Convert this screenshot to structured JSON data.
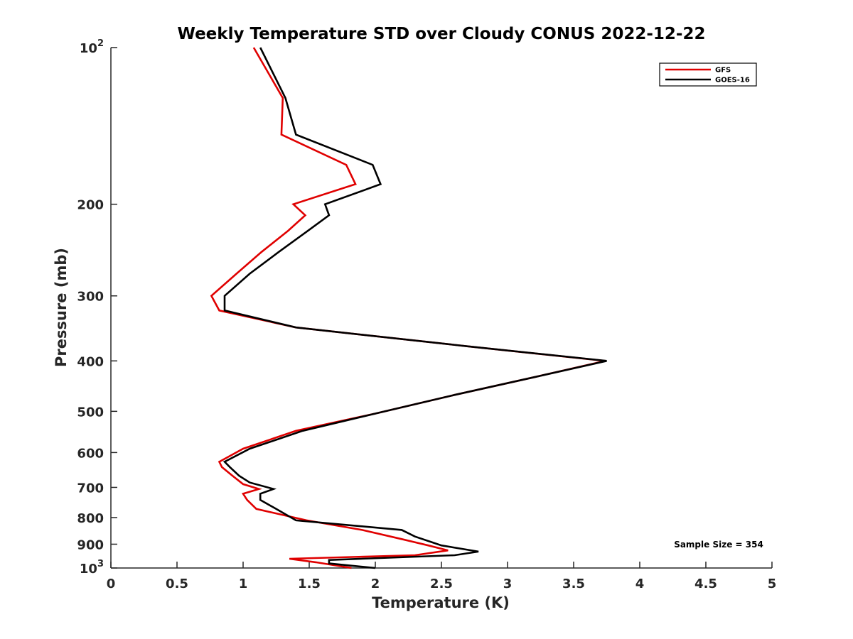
{
  "chart_data": {
    "type": "line",
    "title": "Weekly Temperature STD over Cloudy CONUS 2022-12-22",
    "xlabel": "Temperature (K)",
    "ylabel": "Pressure (mb)",
    "xlim": [
      0,
      5
    ],
    "ylim": [
      100,
      1000
    ],
    "y_scale": "log",
    "y_reversed": true,
    "grid": false,
    "legend_position": "top-right",
    "x_ticks": [
      0,
      0.5,
      1,
      1.5,
      2,
      2.5,
      3,
      3.5,
      4,
      4.5,
      5
    ],
    "x_tick_labels": [
      "0",
      "0.5",
      "1",
      "1.5",
      "2",
      "2.5",
      "3",
      "3.5",
      "4",
      "4.5",
      "5"
    ],
    "y_ticks": [
      {
        "value": 100,
        "base": "10",
        "exp": "2",
        "label": ""
      },
      {
        "value": 200,
        "label": "200"
      },
      {
        "value": 300,
        "label": "300"
      },
      {
        "value": 400,
        "label": "400"
      },
      {
        "value": 500,
        "label": "500"
      },
      {
        "value": 600,
        "label": "600"
      },
      {
        "value": 700,
        "label": "700"
      },
      {
        "value": 800,
        "label": "800"
      },
      {
        "value": 900,
        "label": "900"
      },
      {
        "value": 1000,
        "base": "10",
        "exp": "3",
        "label": ""
      }
    ],
    "annotation": "Sample Size = 354",
    "series": [
      {
        "name": "GFS",
        "color": "#e00000",
        "points": [
          [
            1.08,
            100
          ],
          [
            1.3,
            125
          ],
          [
            1.29,
            147
          ],
          [
            1.78,
            168
          ],
          [
            1.85,
            183
          ],
          [
            1.38,
            200
          ],
          [
            1.47,
            210
          ],
          [
            1.34,
            225
          ],
          [
            1.14,
            247
          ],
          [
            0.95,
            272
          ],
          [
            0.76,
            300
          ],
          [
            0.82,
            320
          ],
          [
            1.4,
            345
          ],
          [
            2.7,
            375
          ],
          [
            3.74,
            400
          ],
          [
            3.2,
            430
          ],
          [
            2.6,
            465
          ],
          [
            2.0,
            505
          ],
          [
            1.4,
            545
          ],
          [
            1.0,
            590
          ],
          [
            0.82,
            625
          ],
          [
            0.84,
            640
          ],
          [
            0.92,
            665
          ],
          [
            1.0,
            690
          ],
          [
            1.12,
            705
          ],
          [
            1.0,
            720
          ],
          [
            1.03,
            740
          ],
          [
            1.1,
            770
          ],
          [
            1.48,
            810
          ],
          [
            1.9,
            845
          ],
          [
            2.2,
            880
          ],
          [
            2.4,
            905
          ],
          [
            2.55,
            925
          ],
          [
            2.3,
            945
          ],
          [
            1.35,
            960
          ],
          [
            1.55,
            975
          ],
          [
            1.82,
            1000
          ]
        ]
      },
      {
        "name": "GOES-16",
        "color": "#000000",
        "points": [
          [
            1.13,
            100
          ],
          [
            1.32,
            125
          ],
          [
            1.4,
            147
          ],
          [
            1.98,
            168
          ],
          [
            2.04,
            183
          ],
          [
            1.62,
            200
          ],
          [
            1.65,
            210
          ],
          [
            1.49,
            225
          ],
          [
            1.27,
            247
          ],
          [
            1.05,
            272
          ],
          [
            0.86,
            300
          ],
          [
            0.86,
            320
          ],
          [
            1.4,
            345
          ],
          [
            2.7,
            375
          ],
          [
            3.75,
            400
          ],
          [
            3.2,
            430
          ],
          [
            2.6,
            465
          ],
          [
            2.0,
            505
          ],
          [
            1.45,
            545
          ],
          [
            1.05,
            590
          ],
          [
            0.86,
            625
          ],
          [
            0.9,
            640
          ],
          [
            0.97,
            665
          ],
          [
            1.05,
            685
          ],
          [
            1.23,
            705
          ],
          [
            1.13,
            720
          ],
          [
            1.13,
            740
          ],
          [
            1.25,
            770
          ],
          [
            1.4,
            810
          ],
          [
            2.2,
            845
          ],
          [
            2.3,
            870
          ],
          [
            2.5,
            905
          ],
          [
            2.78,
            930
          ],
          [
            2.6,
            945
          ],
          [
            1.65,
            965
          ],
          [
            1.65,
            980
          ],
          [
            2.0,
            1000
          ]
        ]
      }
    ]
  }
}
